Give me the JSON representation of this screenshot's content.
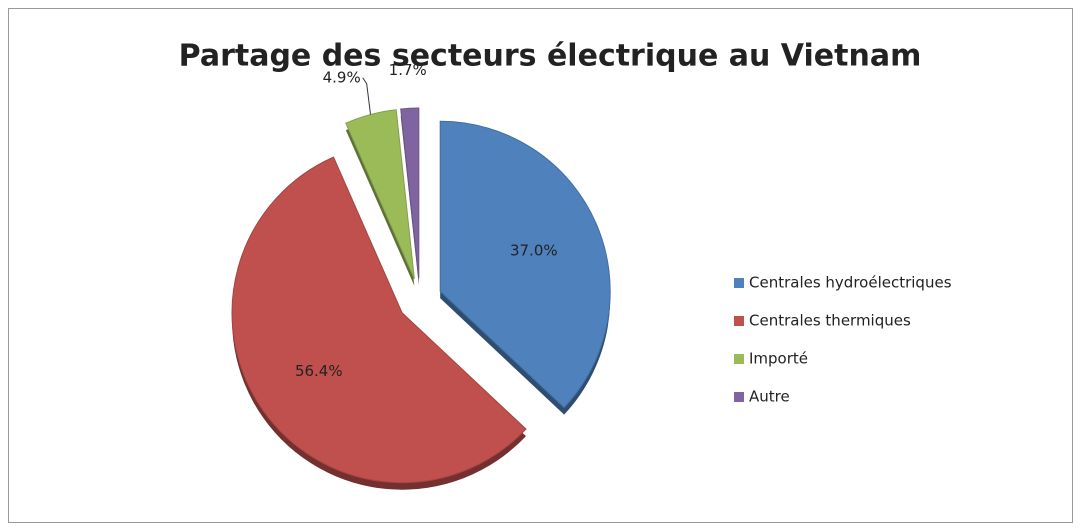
{
  "chart_data": {
    "type": "pie",
    "title": "Partage des secteurs électrique au Vietnam",
    "categories": [
      "Centrales hydroélectriques",
      "Centrales thermiques",
      "Importé",
      "Autre"
    ],
    "values": [
      37.0,
      56.4,
      4.9,
      1.7
    ],
    "value_labels": [
      "37.0%",
      "56.4%",
      "4.9%",
      "1.7%"
    ],
    "colors": [
      "#4f81bd",
      "#c0504d",
      "#9bbb59",
      "#8064a2"
    ],
    "legend": "right"
  }
}
